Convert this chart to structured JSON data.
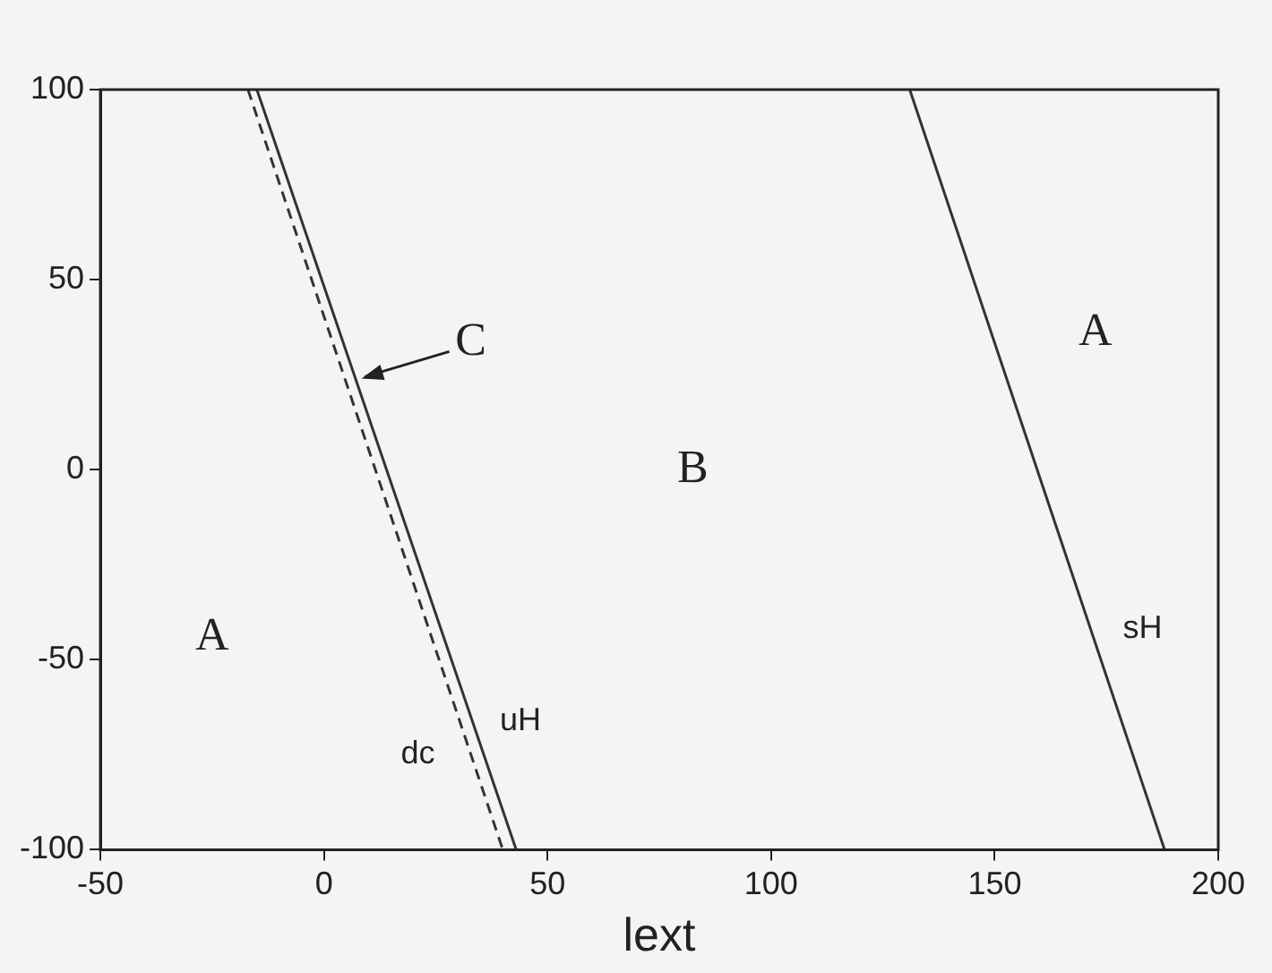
{
  "chart_data": {
    "type": "line",
    "xlabel": "lext",
    "xlim": [
      -50,
      200
    ],
    "xticks": [
      -50,
      0,
      50,
      100,
      150,
      200
    ],
    "ylim": [
      -100,
      100
    ],
    "yticks": [
      -100,
      -50,
      0,
      50,
      100
    ],
    "grid": false,
    "legend": false,
    "marker": "none",
    "series": [
      {
        "type": "line",
        "name": "uH",
        "color": "#333333",
        "line_style": "solid",
        "x": [
          -15,
          43
        ],
        "values": [
          100,
          -100
        ]
      },
      {
        "type": "line",
        "name": "dc",
        "color": "#333333",
        "line_style": "dashed",
        "x": [
          -17,
          40
        ],
        "values": [
          100,
          -100
        ]
      },
      {
        "type": "line",
        "name": "sH",
        "color": "#333333",
        "line_style": "solid",
        "x": [
          131,
          188
        ],
        "values": [
          100,
          -100
        ]
      }
    ],
    "annotations": [
      "A",
      "B",
      "A",
      {
        "text": "C",
        "x": 8,
        "y": 24
      }
    ]
  }
}
